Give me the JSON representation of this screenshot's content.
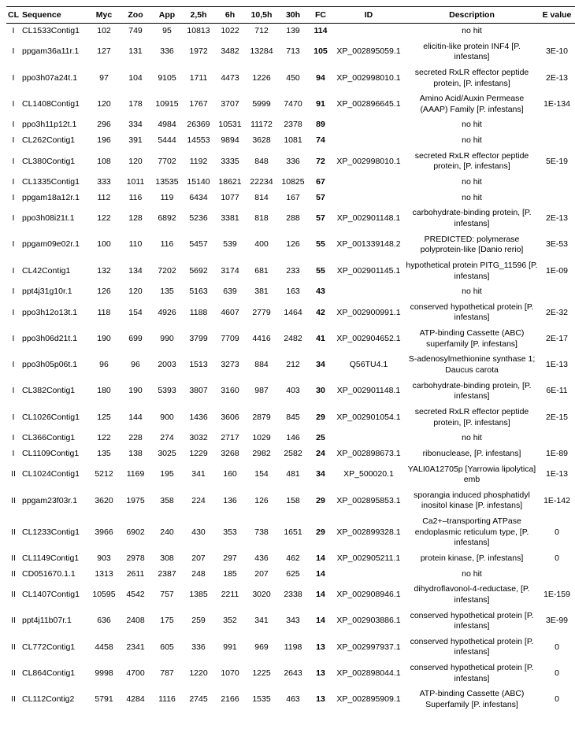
{
  "headers": [
    "CL",
    "Sequence",
    "Myc",
    "Zoo",
    "App",
    "2,5h",
    "6h",
    "10,5h",
    "30h",
    "FC",
    "ID",
    "Description",
    "E value"
  ],
  "rows": [
    {
      "cl": "I",
      "seq": "CL1533Contig1",
      "v": [
        "102",
        "749",
        "95",
        "10813",
        "1022",
        "712",
        "139"
      ],
      "fc": "114",
      "id": "",
      "desc": "no hit",
      "ev": ""
    },
    {
      "cl": "I",
      "seq": "ppgam36a11r.1",
      "v": [
        "127",
        "131",
        "336",
        "1972",
        "3482",
        "13284",
        "713"
      ],
      "fc": "105",
      "id": "XP_002895059.1",
      "desc": "elicitin-like protein INF4 [P. infestans]",
      "ev": "3E-10"
    },
    {
      "cl": "I",
      "seq": "ppo3h07a24t.1",
      "v": [
        "97",
        "104",
        "9105",
        "1711",
        "4473",
        "1226",
        "450"
      ],
      "fc": "94",
      "id": "XP_002998010.1",
      "desc": "secreted RxLR effector peptide protein, [P. infestans]",
      "ev": "2E-13"
    },
    {
      "cl": "I",
      "seq": "CL1408Contig1",
      "v": [
        "120",
        "178",
        "10915",
        "1767",
        "3707",
        "5999",
        "7470"
      ],
      "fc": "91",
      "id": "XP_002896645.1",
      "desc": "Amino Acid/Auxin Permease (AAAP) Family [P. infestans]",
      "ev": "1E-134"
    },
    {
      "cl": "I",
      "seq": "ppo3h11p12t.1",
      "v": [
        "296",
        "334",
        "4984",
        "26369",
        "10531",
        "11172",
        "2378"
      ],
      "fc": "89",
      "id": "",
      "desc": "no hit",
      "ev": ""
    },
    {
      "cl": "I",
      "seq": "CL262Contig1",
      "v": [
        "196",
        "391",
        "5444",
        "14553",
        "9894",
        "3628",
        "1081"
      ],
      "fc": "74",
      "id": "",
      "desc": "no hit",
      "ev": ""
    },
    {
      "cl": "I",
      "seq": "CL380Contig1",
      "v": [
        "108",
        "120",
        "7702",
        "1192",
        "3335",
        "848",
        "336"
      ],
      "fc": "72",
      "id": "XP_002998010.1",
      "desc": "secreted RxLR effector peptide protein, [P. infestans]",
      "ev": "5E-19"
    },
    {
      "cl": "I",
      "seq": "CL1335Contig1",
      "v": [
        "333",
        "1011",
        "13535",
        "15140",
        "18621",
        "22234",
        "10825"
      ],
      "fc": "67",
      "id": "",
      "desc": "no hit",
      "ev": ""
    },
    {
      "cl": "I",
      "seq": "ppgam18a12r.1",
      "v": [
        "112",
        "116",
        "119",
        "6434",
        "1077",
        "814",
        "167"
      ],
      "fc": "57",
      "id": "",
      "desc": "no hit",
      "ev": ""
    },
    {
      "cl": "I",
      "seq": "ppo3h08i21t.1",
      "v": [
        "122",
        "128",
        "6892",
        "5236",
        "3381",
        "818",
        "288"
      ],
      "fc": "57",
      "id": "XP_002901148.1",
      "desc": "carbohydrate-binding protein, [P. infestans]",
      "ev": "2E-13"
    },
    {
      "cl": "I",
      "seq": "ppgam09e02r.1",
      "v": [
        "100",
        "110",
        "116",
        "5457",
        "539",
        "400",
        "126"
      ],
      "fc": "55",
      "id": "XP_001339148.2",
      "desc": "PREDICTED: polymerase polyprotein-like [Danio rerio]",
      "ev": "3E-53"
    },
    {
      "cl": "I",
      "seq": "CL42Contig1",
      "v": [
        "132",
        "134",
        "7202",
        "5692",
        "3174",
        "681",
        "233"
      ],
      "fc": "55",
      "id": "XP_002901145.1",
      "desc": "hypothetical protein PITG_11596 [P. infestans]",
      "ev": "1E-09"
    },
    {
      "cl": "I",
      "seq": "ppt4j31g10r.1",
      "v": [
        "126",
        "120",
        "135",
        "5163",
        "639",
        "381",
        "163"
      ],
      "fc": "43",
      "id": "",
      "desc": "no hit",
      "ev": ""
    },
    {
      "cl": "I",
      "seq": "ppo3h12o13t.1",
      "v": [
        "118",
        "154",
        "4926",
        "1188",
        "4607",
        "2779",
        "1464"
      ],
      "fc": "42",
      "id": "XP_002900991.1",
      "desc": "conserved hypothetical protein [P. infestans]",
      "ev": "2E-32"
    },
    {
      "cl": "I",
      "seq": "ppo3h06d21t.1",
      "v": [
        "190",
        "699",
        "990",
        "3799",
        "7709",
        "4416",
        "2482"
      ],
      "fc": "41",
      "id": "XP_002904652.1",
      "desc": "ATP-binding Cassette (ABC) superfamily [P. infestans]",
      "ev": "2E-17"
    },
    {
      "cl": "I",
      "seq": "ppo3h05p06t.1",
      "v": [
        "96",
        "96",
        "2003",
        "1513",
        "3273",
        "884",
        "212"
      ],
      "fc": "34",
      "id": "Q56TU4.1",
      "desc": "S-adenosylmethionine synthase 1; Daucus carota",
      "ev": "1E-13"
    },
    {
      "cl": "I",
      "seq": "CL382Contig1",
      "v": [
        "180",
        "190",
        "5393",
        "3807",
        "3160",
        "987",
        "403"
      ],
      "fc": "30",
      "id": "XP_002901148.1",
      "desc": "carbohydrate-binding protein, [P. infestans]",
      "ev": "6E-11"
    },
    {
      "cl": "I",
      "seq": "CL1026Contig1",
      "v": [
        "125",
        "144",
        "900",
        "1436",
        "3606",
        "2879",
        "845"
      ],
      "fc": "29",
      "id": "XP_002901054.1",
      "desc": "secreted RxLR effector peptide protein, [P. infestans]",
      "ev": "2E-15"
    },
    {
      "cl": "I",
      "seq": "CL366Contig1",
      "v": [
        "122",
        "228",
        "274",
        "3032",
        "2717",
        "1029",
        "146"
      ],
      "fc": "25",
      "id": "",
      "desc": "no hit",
      "ev": ""
    },
    {
      "cl": "I",
      "seq": "CL1109Contig1",
      "v": [
        "135",
        "138",
        "3025",
        "1229",
        "3268",
        "2982",
        "2582"
      ],
      "fc": "24",
      "id": "XP_002898673.1",
      "desc": "ribonuclease, [P. infestans]",
      "ev": "1E-89"
    },
    {
      "cl": "II",
      "seq": "CL1024Contig1",
      "v": [
        "5212",
        "1169",
        "195",
        "341",
        "160",
        "154",
        "481"
      ],
      "fc": "34",
      "id": "XP_500020.1",
      "desc": "YALI0A12705p [Yarrowia lipolytica] emb",
      "ev": "1E-13"
    },
    {
      "cl": "II",
      "seq": "ppgam23f03r.1",
      "v": [
        "3620",
        "1975",
        "358",
        "224",
        "136",
        "126",
        "158"
      ],
      "fc": "29",
      "id": "XP_002895853.1",
      "desc": "sporangia induced phosphatidyl inositol kinase [P. infestans]",
      "ev": "1E-142"
    },
    {
      "cl": "II",
      "seq": "CL1233Contig1",
      "v": [
        "3966",
        "6902",
        "240",
        "430",
        "353",
        "738",
        "1651"
      ],
      "fc": "29",
      "id": "XP_002899328.1",
      "desc": "Ca2+–transporting ATPase endoplasmic reticulum type, [P. infestans]",
      "ev": "0"
    },
    {
      "cl": "II",
      "seq": "CL1149Contig1",
      "v": [
        "903",
        "2978",
        "308",
        "207",
        "297",
        "436",
        "462"
      ],
      "fc": "14",
      "id": "XP_002905211.1",
      "desc": "protein kinase, [P. infestans]",
      "ev": "0"
    },
    {
      "cl": "II",
      "seq": "CD051670.1.1",
      "v": [
        "1313",
        "2611",
        "2387",
        "248",
        "185",
        "207",
        "625"
      ],
      "fc": "14",
      "id": "",
      "desc": "no hit",
      "ev": ""
    },
    {
      "cl": "II",
      "seq": "CL1407Contig1",
      "v": [
        "10595",
        "4542",
        "757",
        "1385",
        "2211",
        "3020",
        "2338"
      ],
      "fc": "14",
      "id": "XP_002908946.1",
      "desc": "dihydroflavonol-4-reductase, [P. infestans]",
      "ev": "1E-159"
    },
    {
      "cl": "II",
      "seq": "ppt4j11b07r.1",
      "v": [
        "636",
        "2408",
        "175",
        "259",
        "352",
        "341",
        "343"
      ],
      "fc": "14",
      "id": "XP_002903886.1",
      "desc": "conserved hypothetical protein [P. infestans]",
      "ev": "3E-99"
    },
    {
      "cl": "II",
      "seq": "CL772Contig1",
      "v": [
        "4458",
        "2341",
        "605",
        "336",
        "991",
        "969",
        "1198"
      ],
      "fc": "13",
      "id": "XP_002997937.1",
      "desc": "conserved hypothetical protein [P. infestans]",
      "ev": "0"
    },
    {
      "cl": "II",
      "seq": "CL864Contig1",
      "v": [
        "9998",
        "4700",
        "787",
        "1220",
        "1070",
        "1225",
        "2643"
      ],
      "fc": "13",
      "id": "XP_002898044.1",
      "desc": "conserved hypothetical protein [P. infestans]",
      "ev": "0"
    },
    {
      "cl": "II",
      "seq": "CL112Contig2",
      "v": [
        "5791",
        "4284",
        "1116",
        "2745",
        "2166",
        "1535",
        "463"
      ],
      "fc": "13",
      "id": "XP_002895909.1",
      "desc": "ATP-binding Cassette (ABC) Superfamily [P. infestans]",
      "ev": "0"
    }
  ]
}
